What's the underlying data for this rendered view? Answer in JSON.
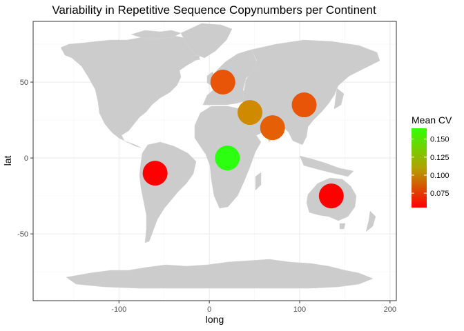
{
  "chart_data": {
    "type": "scatter",
    "title": "Variability in Repetitive Sequence Copynumbers per Continent",
    "xlabel": "long",
    "ylabel": "lat",
    "xlim": [
      -195,
      207
    ],
    "ylim": [
      -94,
      90
    ],
    "x_ticks": [
      -100,
      0,
      100,
      200
    ],
    "x_tick_labels": [
      "-100",
      "0",
      "100",
      "200"
    ],
    "y_ticks": [
      -50,
      0,
      50
    ],
    "y_tick_labels": [
      "-50",
      "0",
      "50"
    ],
    "grid": true,
    "background": "map of the world (land masses)",
    "legend": {
      "title": "Mean CV",
      "placement": "right",
      "type": "colorbar",
      "range": [
        0.055,
        0.165
      ],
      "low_color": "#ff0000",
      "mid_color": "#b2a100",
      "high_color": "#33ff00",
      "ticks": [
        0.075,
        0.1,
        0.125,
        0.15
      ],
      "tick_labels": [
        "0.075",
        "0.100",
        "0.125",
        "0.150"
      ]
    },
    "points": [
      {
        "x": 15,
        "y": 50,
        "value": 0.085,
        "color": "#e85408"
      },
      {
        "x": 45,
        "y": 30,
        "value": 0.115,
        "color": "#d08a00"
      },
      {
        "x": 70,
        "y": 20,
        "value": 0.09,
        "color": "#e45f06"
      },
      {
        "x": 105,
        "y": 35,
        "value": 0.085,
        "color": "#e85408"
      },
      {
        "x": 20,
        "y": 0,
        "value": 0.16,
        "color": "#2cff10"
      },
      {
        "x": -60,
        "y": -10,
        "value": 0.06,
        "color": "#ff0000"
      },
      {
        "x": 135,
        "y": -25,
        "value": 0.06,
        "color": "#ff0000"
      }
    ]
  },
  "colors": {
    "panel_bg": "#ffffff",
    "grid_major": "#ebebeb",
    "grid_minor": "#f5f5f5",
    "panel_border": "#333333",
    "land": "#cccccc"
  }
}
